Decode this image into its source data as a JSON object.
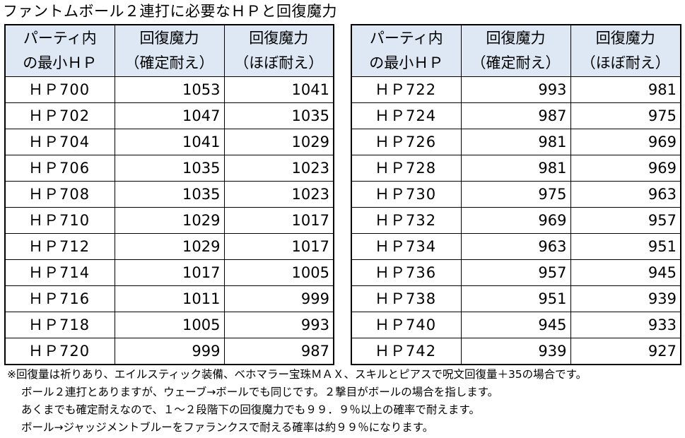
{
  "title": "ファントムボール２連打に必要なＨＰと回復魔力",
  "headers": {
    "col1": [
      "パーティ内",
      "の最小ＨＰ"
    ],
    "col2": [
      "回復魔力",
      "（確定耐え）"
    ],
    "col3": [
      "回復魔力",
      "（ほぼ耐え）"
    ]
  },
  "left_rows": [
    [
      "ＨＰ700",
      "1053",
      "1041"
    ],
    [
      "ＨＰ702",
      "1047",
      "1035"
    ],
    [
      "ＨＰ704",
      "1041",
      "1029"
    ],
    [
      "ＨＰ706",
      "1035",
      "1023"
    ],
    [
      "ＨＰ708",
      "1035",
      "1023"
    ],
    [
      "ＨＰ710",
      "1029",
      "1017"
    ],
    [
      "ＨＰ712",
      "1029",
      "1017"
    ],
    [
      "ＨＰ714",
      "1017",
      "1005"
    ],
    [
      "ＨＰ716",
      "1011",
      "999"
    ],
    [
      "ＨＰ718",
      "1005",
      "993"
    ],
    [
      "ＨＰ720",
      "999",
      "987"
    ]
  ],
  "right_rows": [
    [
      "ＨＰ722",
      "993",
      "981"
    ],
    [
      "ＨＰ724",
      "987",
      "975"
    ],
    [
      "ＨＰ726",
      "981",
      "969"
    ],
    [
      "ＨＰ728",
      "981",
      "969"
    ],
    [
      "ＨＰ730",
      "975",
      "963"
    ],
    [
      "ＨＰ732",
      "969",
      "957"
    ],
    [
      "ＨＰ734",
      "963",
      "951"
    ],
    [
      "ＨＰ736",
      "957",
      "945"
    ],
    [
      "ＨＰ738",
      "951",
      "939"
    ],
    [
      "ＨＰ740",
      "945",
      "933"
    ],
    [
      "ＨＰ742",
      "939",
      "927"
    ]
  ],
  "notes": [
    "※回復量は祈りあり、エイルスティック装備、ベホマラー宝珠ＭＡＸ、スキルとピアスで呪文回復量＋35の場合です。",
    "ボール２連打とありますが、ウェーブ→ボールでも同じです。２撃目がボールの場合を指します。",
    "あくまでも確定耐えなので、１～２段階下の回復魔力でも９９．９％以上の確率で耐えます。",
    "ボール→ジャッジメントブルーをファランクスで耐える確率は約９９％になります。"
  ],
  "colors": {
    "header_bg": "#dde8f4",
    "border": "#000000",
    "text": "#000000"
  }
}
